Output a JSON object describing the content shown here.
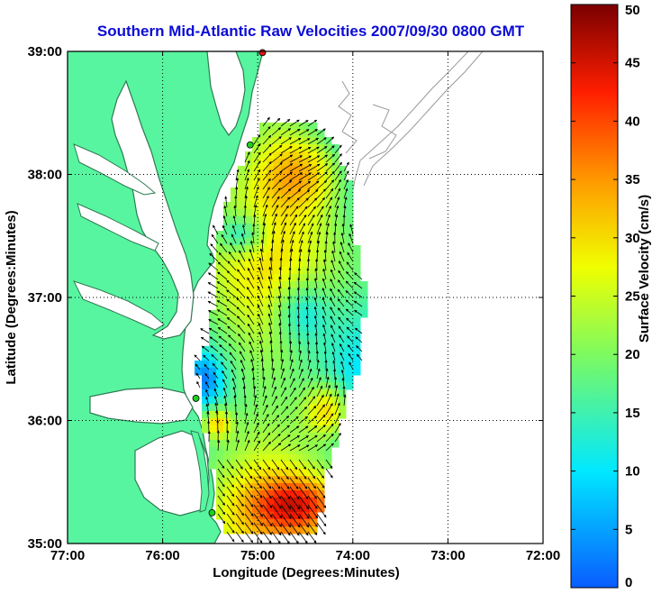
{
  "title": "Southern Mid-Atlantic Raw Velocities 2007/09/30 0800 GMT",
  "colors": {
    "land": "#58f5a0",
    "land_edge": "#2f7a52",
    "title": "#0b0bd6",
    "station": "#20d020",
    "station_red": "#e01818"
  },
  "map": {
    "xlabel": "Longitude (Degrees:Minutes)",
    "ylabel": "Latitude (Degrees:Minutes)",
    "lon_range": [
      -77,
      -72
    ],
    "lat_range": [
      35,
      39
    ],
    "lon_ticks": [
      {
        "v": -77,
        "label": "77:00"
      },
      {
        "v": -76,
        "label": "76:00"
      },
      {
        "v": -75,
        "label": "75:00"
      },
      {
        "v": -74,
        "label": "74:00"
      },
      {
        "v": -73,
        "label": "73:00"
      },
      {
        "v": -72,
        "label": "72:00"
      }
    ],
    "lat_ticks": [
      {
        "v": 35,
        "label": "35:00"
      },
      {
        "v": 36,
        "label": "36:00"
      },
      {
        "v": 37,
        "label": "37:00"
      },
      {
        "v": 38,
        "label": "38:00"
      },
      {
        "v": 39,
        "label": "39:00"
      }
    ],
    "grid": true
  },
  "colorbar": {
    "label": "Surface Velocity (cm/s)",
    "range": [
      0,
      50
    ],
    "ticks": [
      {
        "v": 0,
        "label": "0"
      },
      {
        "v": 5,
        "label": "5"
      },
      {
        "v": 10,
        "label": "10"
      },
      {
        "v": 15,
        "label": "15"
      },
      {
        "v": 20,
        "label": "20"
      },
      {
        "v": 25,
        "label": "25"
      },
      {
        "v": 30,
        "label": "30"
      },
      {
        "v": 35,
        "label": "35"
      },
      {
        "v": 40,
        "label": "40"
      },
      {
        "v": 45,
        "label": "45"
      },
      {
        "v": 50,
        "label": "50"
      }
    ]
  },
  "stations": [
    {
      "lon": -74.95,
      "lat": 38.99,
      "color": "red"
    },
    {
      "lon": -75.08,
      "lat": 38.24,
      "color": "green"
    },
    {
      "lon": -75.65,
      "lat": 36.18,
      "color": "green"
    },
    {
      "lon": -75.48,
      "lat": 35.25,
      "color": "green"
    }
  ]
}
